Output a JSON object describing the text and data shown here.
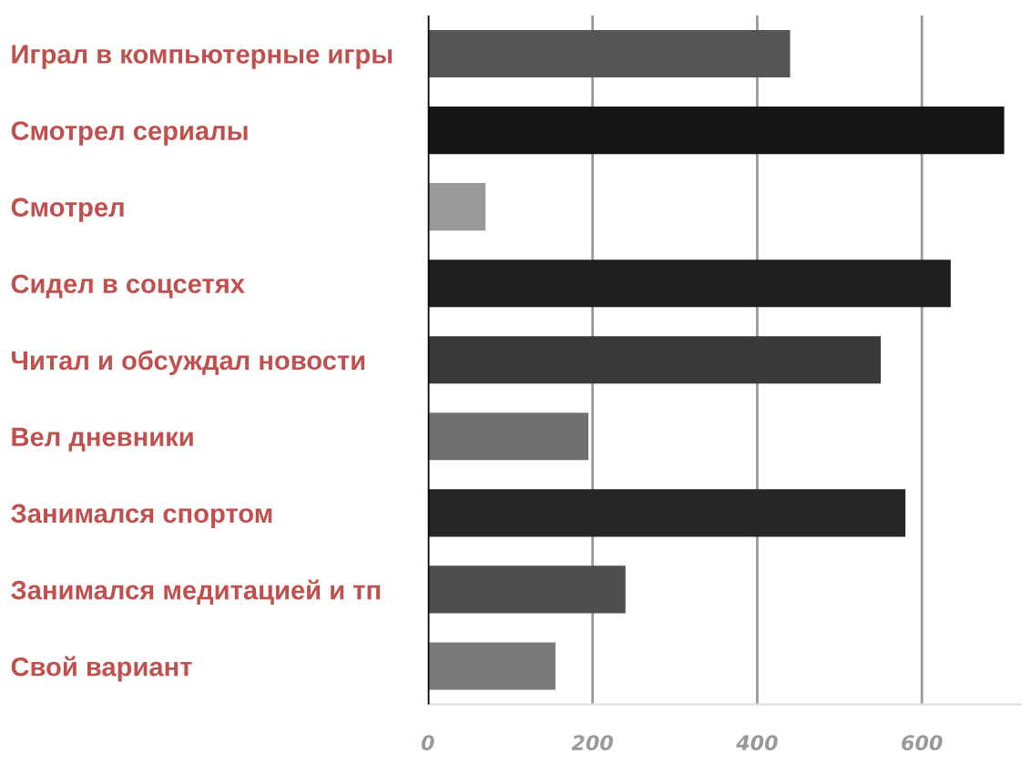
{
  "chart_data": {
    "type": "bar",
    "orientation": "horizontal",
    "categories": [
      "Играл в компьютерные игры",
      "Смотрел сериалы",
      "Смотрел",
      "Сидел в соцсетях",
      "Читал и обсуждал новости",
      "Вел дневники",
      "Занимался спортом",
      "Занимался медитацией и тп",
      "Свой вариант"
    ],
    "values": [
      440,
      700,
      70,
      635,
      550,
      195,
      580,
      240,
      155
    ],
    "colors": [
      "#555555",
      "#151515",
      "#999999",
      "#1e1e1e",
      "#3a3a3a",
      "#707070",
      "#262626",
      "#4f4f4f",
      "#7a7a7a"
    ],
    "xlim": [
      0,
      720
    ],
    "xticks": [
      0,
      200,
      400,
      600
    ],
    "grid": "x",
    "legend": false
  }
}
